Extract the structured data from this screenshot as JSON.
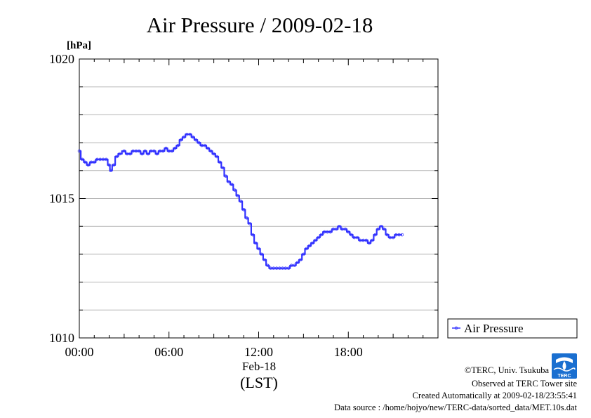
{
  "chart_data": {
    "type": "line",
    "title": "Air Pressure / 2009-02-18",
    "ylabel": "[hPa]",
    "xlabel": "(LST)",
    "x_date_label": "Feb-18",
    "ylim": [
      1010,
      1020
    ],
    "xlim_hours": [
      0,
      24
    ],
    "y_ticks": [
      "1010",
      "1015",
      "1020"
    ],
    "x_ticks": [
      {
        "hour": 0,
        "label": "00:00"
      },
      {
        "hour": 6,
        "label": "06:00"
      },
      {
        "hour": 12,
        "label": "12:00"
      },
      {
        "hour": 18,
        "label": "18:00"
      }
    ],
    "grid": true,
    "legend": {
      "placement": "right",
      "entries": [
        "Air Pressure"
      ]
    },
    "series": [
      {
        "name": "Air Pressure",
        "color": "#3333ff",
        "points": [
          [
            0.0,
            1016.7
          ],
          [
            0.2,
            1016.4
          ],
          [
            0.4,
            1016.3
          ],
          [
            0.6,
            1016.2
          ],
          [
            0.8,
            1016.3
          ],
          [
            1.0,
            1016.3
          ],
          [
            1.2,
            1016.4
          ],
          [
            1.4,
            1016.4
          ],
          [
            1.6,
            1016.4
          ],
          [
            1.8,
            1016.4
          ],
          [
            2.0,
            1016.2
          ],
          [
            2.1,
            1016.0
          ],
          [
            2.3,
            1016.2
          ],
          [
            2.5,
            1016.5
          ],
          [
            2.7,
            1016.6
          ],
          [
            3.0,
            1016.7
          ],
          [
            3.2,
            1016.6
          ],
          [
            3.4,
            1016.6
          ],
          [
            3.6,
            1016.7
          ],
          [
            3.8,
            1016.7
          ],
          [
            4.0,
            1016.7
          ],
          [
            4.2,
            1016.6
          ],
          [
            4.4,
            1016.7
          ],
          [
            4.6,
            1016.6
          ],
          [
            4.8,
            1016.7
          ],
          [
            5.0,
            1016.7
          ],
          [
            5.2,
            1016.6
          ],
          [
            5.4,
            1016.7
          ],
          [
            5.6,
            1016.7
          ],
          [
            5.8,
            1016.8
          ],
          [
            6.0,
            1016.7
          ],
          [
            6.2,
            1016.7
          ],
          [
            6.4,
            1016.8
          ],
          [
            6.6,
            1016.9
          ],
          [
            6.8,
            1017.1
          ],
          [
            7.0,
            1017.2
          ],
          [
            7.2,
            1017.3
          ],
          [
            7.4,
            1017.3
          ],
          [
            7.6,
            1017.2
          ],
          [
            7.8,
            1017.1
          ],
          [
            8.0,
            1017.0
          ],
          [
            8.2,
            1016.9
          ],
          [
            8.4,
            1016.9
          ],
          [
            8.6,
            1016.8
          ],
          [
            8.8,
            1016.7
          ],
          [
            9.0,
            1016.6
          ],
          [
            9.2,
            1016.5
          ],
          [
            9.4,
            1016.3
          ],
          [
            9.6,
            1016.1
          ],
          [
            9.8,
            1015.8
          ],
          [
            10.0,
            1015.6
          ],
          [
            10.2,
            1015.5
          ],
          [
            10.4,
            1015.3
          ],
          [
            10.6,
            1015.1
          ],
          [
            10.8,
            1014.9
          ],
          [
            11.0,
            1014.6
          ],
          [
            11.2,
            1014.3
          ],
          [
            11.4,
            1014.1
          ],
          [
            11.6,
            1013.7
          ],
          [
            11.8,
            1013.4
          ],
          [
            12.0,
            1013.2
          ],
          [
            12.2,
            1013.0
          ],
          [
            12.4,
            1012.8
          ],
          [
            12.6,
            1012.6
          ],
          [
            12.8,
            1012.5
          ],
          [
            13.0,
            1012.5
          ],
          [
            13.2,
            1012.5
          ],
          [
            13.4,
            1012.5
          ],
          [
            13.6,
            1012.5
          ],
          [
            13.8,
            1012.5
          ],
          [
            14.0,
            1012.5
          ],
          [
            14.2,
            1012.6
          ],
          [
            14.4,
            1012.6
          ],
          [
            14.6,
            1012.7
          ],
          [
            14.8,
            1012.8
          ],
          [
            15.0,
            1013.0
          ],
          [
            15.2,
            1013.2
          ],
          [
            15.4,
            1013.3
          ],
          [
            15.6,
            1013.4
          ],
          [
            15.8,
            1013.5
          ],
          [
            16.0,
            1013.6
          ],
          [
            16.2,
            1013.7
          ],
          [
            16.4,
            1013.8
          ],
          [
            16.6,
            1013.8
          ],
          [
            16.8,
            1013.8
          ],
          [
            17.0,
            1013.9
          ],
          [
            17.2,
            1013.9
          ],
          [
            17.4,
            1014.0
          ],
          [
            17.6,
            1013.9
          ],
          [
            17.8,
            1013.9
          ],
          [
            18.0,
            1013.8
          ],
          [
            18.2,
            1013.7
          ],
          [
            18.4,
            1013.6
          ],
          [
            18.6,
            1013.6
          ],
          [
            18.8,
            1013.5
          ],
          [
            19.0,
            1013.5
          ],
          [
            19.2,
            1013.5
          ],
          [
            19.4,
            1013.4
          ],
          [
            19.6,
            1013.5
          ],
          [
            19.8,
            1013.7
          ],
          [
            20.0,
            1013.9
          ],
          [
            20.2,
            1014.0
          ],
          [
            20.4,
            1013.9
          ],
          [
            20.6,
            1013.7
          ],
          [
            20.8,
            1013.6
          ],
          [
            21.0,
            1013.6
          ],
          [
            21.2,
            1013.7
          ],
          [
            21.4,
            1013.7
          ],
          [
            21.6,
            1013.7
          ]
        ]
      }
    ]
  },
  "credits": {
    "copyright": "©TERC, Univ. Tsukuba",
    "observed": "Observed at TERC Tower site",
    "created": "Created Automatically at 2009-02-18/23:55:41",
    "source": "Data source : /home/hojyo/new/TERC-data/sorted_data/MET.10s.dat"
  },
  "logo": {
    "name": "terc-logo",
    "text": "TERC",
    "color": "#1a6fd0"
  }
}
